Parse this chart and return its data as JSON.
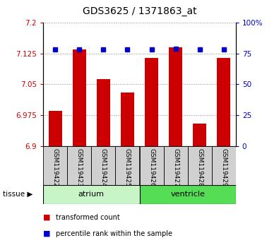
{
  "title": "GDS3625 / 1371863_at",
  "samples": [
    "GSM119422",
    "GSM119423",
    "GSM119424",
    "GSM119425",
    "GSM119426",
    "GSM119427",
    "GSM119428",
    "GSM119429"
  ],
  "transformed_counts": [
    6.985,
    7.135,
    7.062,
    7.03,
    7.115,
    7.14,
    6.955,
    7.115
  ],
  "percentile_ranks": [
    78,
    78,
    78,
    78,
    78,
    79,
    78,
    78
  ],
  "ylim_left": [
    6.9,
    7.2
  ],
  "yticks_left": [
    6.9,
    6.975,
    7.05,
    7.125,
    7.2
  ],
  "ytick_labels_left": [
    "6.9",
    "6.975",
    "7.05",
    "7.125",
    "7.2"
  ],
  "ylim_right": [
    0,
    100
  ],
  "yticks_right": [
    0,
    25,
    50,
    75,
    100
  ],
  "ytick_labels_right": [
    "0",
    "25",
    "50",
    "75",
    "100%"
  ],
  "bar_color": "#cc0000",
  "dot_color": "#0000cc",
  "bar_bottom": 6.9,
  "groups": [
    {
      "label": "atrium",
      "start": 0,
      "end": 3,
      "color": "#c8f5c8"
    },
    {
      "label": "ventricle",
      "start": 4,
      "end": 7,
      "color": "#55dd55"
    }
  ],
  "dotted_line_color": "#888888",
  "tick_color_left": "#cc0000",
  "tick_color_right": "#0000cc",
  "bar_width": 0.55,
  "legend_items": [
    {
      "label": "transformed count",
      "color": "#cc0000"
    },
    {
      "label": "percentile rank within the sample",
      "color": "#0000cc"
    }
  ]
}
